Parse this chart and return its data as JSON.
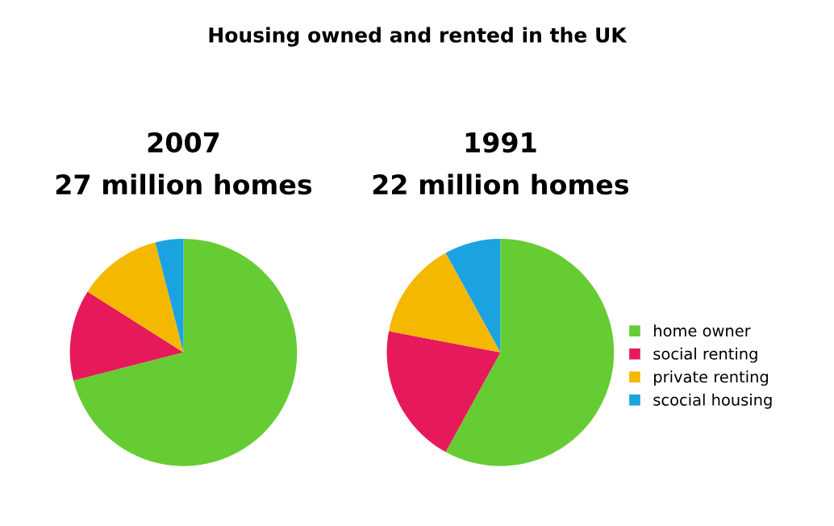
{
  "chart_data": [
    {
      "type": "pie",
      "title": "2007",
      "subtitle": "27 million homes",
      "annotations": [
        "Housing owned and rented in the UK"
      ],
      "categories": [
        "home owner",
        "social renting",
        "private renting",
        "scocial housing"
      ],
      "values": [
        71,
        13,
        12,
        4
      ],
      "colors": [
        "#66cc33",
        "#e6195a",
        "#f5b800",
        "#1aa3e0"
      ],
      "legend": "right"
    },
    {
      "type": "pie",
      "title": "1991",
      "subtitle": "22 million homes",
      "categories": [
        null,
        null,
        null,
        null
      ],
      "values": [
        58,
        20,
        14,
        8
      ],
      "colors": [
        "#66cc33",
        "#e6195a",
        "#f5b800",
        "#1aa3e0"
      ]
    }
  ]
}
